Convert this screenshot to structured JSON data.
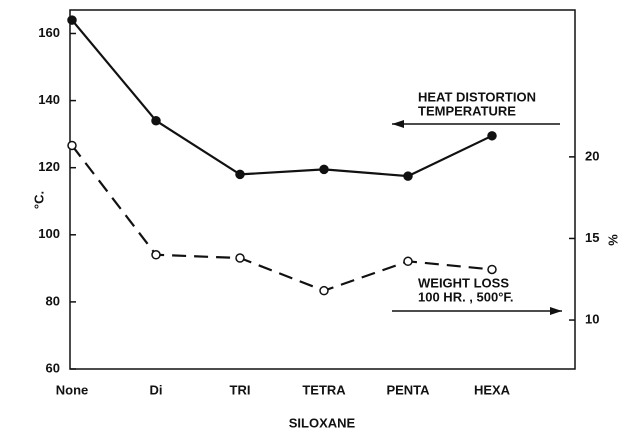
{
  "chart_data": {
    "type": "line",
    "categories": [
      "None",
      "Di",
      "TRI",
      "TETRA",
      "PENTA",
      "HEXA"
    ],
    "series": [
      {
        "color": "#111111",
        "dashed": false,
        "marker": "filled",
        "values": [
          164,
          134,
          118,
          119.5,
          117.5,
          129.5
        ]
      },
      {
        "color": "#111111",
        "dashed": true,
        "marker": "open",
        "axis": "y2",
        "values": [
          20.7,
          14.0,
          13.8,
          11.8,
          13.6,
          13.1
        ]
      }
    ],
    "ylabel": "°C.",
    "y2label": "%",
    "xlabel": "SILOXANE",
    "ylim": [
      60,
      167
    ],
    "yticks": [
      60,
      80,
      100,
      120,
      140,
      160
    ],
    "y2lim": [
      7,
      29
    ],
    "y2ticks": [
      10,
      15,
      20
    ],
    "annotations": [
      {
        "lines": [
          "HEAT DISTORTION",
          "TEMPERATURE"
        ],
        "arrow": "left"
      },
      {
        "lines": [
          "WEIGHT LOSS",
          "100 HR. , 500°F."
        ],
        "arrow": "right"
      }
    ]
  }
}
